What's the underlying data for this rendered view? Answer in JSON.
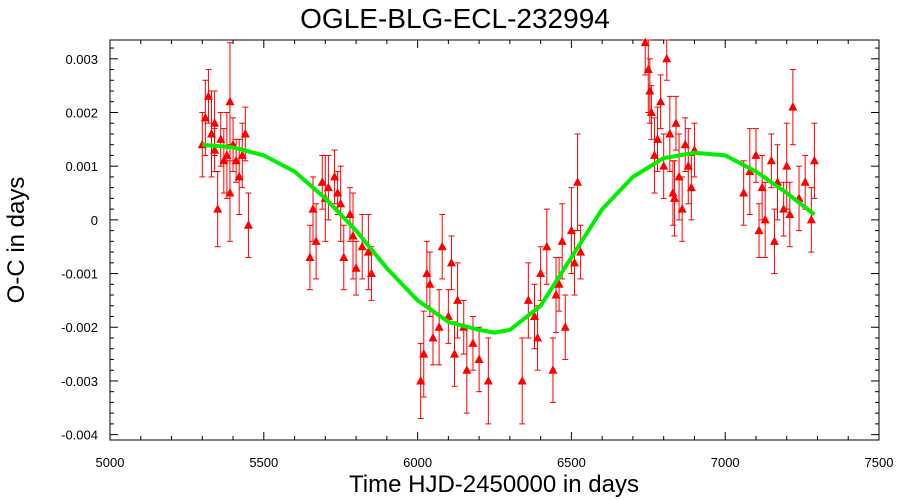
{
  "chart_data": {
    "type": "scatter",
    "title": "OGLE-BLG-ECL-232994",
    "xlabel": "Time HJD-2450000 in days",
    "ylabel": "O-C in days",
    "xlim": [
      5000,
      7500
    ],
    "ylim": [
      -0.0041,
      0.00335
    ],
    "x_ticks": [
      5000,
      5500,
      6000,
      6500,
      7000,
      7500
    ],
    "x_tick_labels": [
      "5000",
      "5500",
      "6000",
      "6500",
      "7000",
      "7500"
    ],
    "y_ticks": [
      0.003,
      0.002,
      0.001,
      0,
      -0.001,
      -0.002,
      -0.003,
      -0.004
    ],
    "y_tick_labels": [
      "0.003",
      "0.002",
      "0.001",
      "0",
      "-0.001",
      "-0.002",
      "-0.003",
      "-0.004"
    ],
    "grid": false,
    "legend": "none",
    "colors": {
      "points": "#ff0000",
      "fit": "#00ee00",
      "frame": "#000000"
    },
    "fit_curve": {
      "x": [
        5300,
        5400,
        5500,
        5600,
        5700,
        5800,
        5900,
        6000,
        6100,
        6200,
        6250,
        6300,
        6400,
        6500,
        6600,
        6700,
        6800,
        6900,
        7000,
        7100,
        7200,
        7290
      ],
      "y": [
        0.0014,
        0.00135,
        0.0012,
        0.0009,
        0.0004,
        -0.0002,
        -0.0009,
        -0.0015,
        -0.0019,
        -0.00205,
        -0.0021,
        -0.00205,
        -0.0016,
        -0.0007,
        0.0002,
        0.0008,
        0.00115,
        0.00125,
        0.0012,
        0.0009,
        0.0005,
        0.0001
      ]
    },
    "points": {
      "x": [
        5300,
        5310,
        5320,
        5330,
        5340,
        5350,
        5360,
        5370,
        5380,
        5390,
        5400,
        5410,
        5420,
        5430,
        5440,
        5450,
        5340,
        5390,
        5650,
        5670,
        5690,
        5700,
        5710,
        5730,
        5750,
        5760,
        5780,
        5790,
        5800,
        5820,
        5840,
        5850,
        5660,
        5740,
        6010,
        6020,
        6030,
        6050,
        6070,
        6080,
        6100,
        6120,
        6130,
        6150,
        6160,
        6180,
        6200,
        6230,
        6040,
        6110,
        6340,
        6360,
        6380,
        6400,
        6420,
        6440,
        6460,
        6470,
        6480,
        6500,
        6510,
        6520,
        6530,
        6390,
        6450,
        6740,
        6750,
        6760,
        6770,
        6780,
        6790,
        6800,
        6810,
        6820,
        6830,
        6840,
        6850,
        6860,
        6870,
        6880,
        6890,
        6900,
        6755,
        6835,
        7060,
        7080,
        7100,
        7120,
        7130,
        7150,
        7160,
        7170,
        7190,
        7200,
        7220,
        7240,
        7260,
        7280,
        7290,
        7110,
        7210
      ],
      "y": [
        0.0014,
        0.0019,
        0.0023,
        0.0016,
        0.0018,
        0.0002,
        0.0015,
        0.0011,
        0.0012,
        0.0022,
        0.0014,
        0.0011,
        0.0008,
        0.0012,
        0.0016,
        -0.0001,
        0.0013,
        0.0005,
        -0.0007,
        -0.0004,
        0.0007,
        0.0004,
        0.0006,
        0.0008,
        0.0003,
        -0.0007,
        0.0001,
        -0.0003,
        -0.0009,
        -0.0005,
        -0.0006,
        -0.001,
        0.0002,
        0.0005,
        -0.003,
        -0.0025,
        -0.001,
        -0.0022,
        -0.002,
        -0.0005,
        -0.0018,
        -0.0025,
        -0.0015,
        -0.002,
        -0.0028,
        -0.0023,
        -0.0026,
        -0.003,
        -0.0012,
        -0.0008,
        -0.003,
        -0.0015,
        -0.0018,
        -0.001,
        -0.0005,
        -0.0028,
        -0.0012,
        -0.0004,
        -0.002,
        -0.0002,
        -0.0008,
        0.0007,
        -0.0006,
        -0.0022,
        -0.0014,
        0.0033,
        0.0028,
        0.002,
        0.0012,
        0.0015,
        0.0022,
        0.001,
        0.003,
        0.0016,
        0.0005,
        0.0018,
        0.0008,
        0.0002,
        0.0014,
        0.001,
        0.0006,
        0.0013,
        0.0024,
        0.0004,
        0.0005,
        0.0009,
        0.0012,
        0.0006,
        0.0,
        0.0011,
        -0.0004,
        0.0007,
        0.0002,
        0.001,
        0.0021,
        0.0004,
        0.0007,
        0.0,
        0.0011,
        -0.0002,
        0.0001
      ],
      "yerr": [
        0.0006,
        0.0007,
        0.0005,
        0.0008,
        0.0006,
        0.0007,
        0.0005,
        0.0006,
        0.0008,
        0.0011,
        0.0005,
        0.0004,
        0.0007,
        0.0006,
        0.0005,
        0.0006,
        0.0004,
        0.0009,
        0.0006,
        0.0007,
        0.0005,
        0.0008,
        0.0006,
        0.0005,
        0.0007,
        0.0006,
        0.0005,
        0.0008,
        0.0005,
        0.0006,
        0.0007,
        0.0005,
        0.0006,
        0.0004,
        0.0007,
        0.0008,
        0.0006,
        0.0005,
        0.0007,
        0.0006,
        0.0005,
        0.0006,
        0.0007,
        0.0005,
        0.0008,
        0.0005,
        0.0006,
        0.0008,
        0.0006,
        0.0005,
        0.0008,
        0.0007,
        0.0006,
        0.0005,
        0.0007,
        0.0006,
        0.0005,
        0.0007,
        0.0006,
        0.0008,
        0.0006,
        0.0009,
        0.0005,
        0.0006,
        0.0007,
        0.0006,
        0.0008,
        0.0005,
        0.0007,
        0.0006,
        0.0005,
        0.0006,
        0.0004,
        0.0007,
        0.0006,
        0.0005,
        0.0008,
        0.0006,
        0.0005,
        0.0007,
        0.0006,
        0.0005,
        0.0006,
        0.0007,
        0.0006,
        0.0008,
        0.0005,
        0.0006,
        0.0007,
        0.0005,
        0.0006,
        0.0007,
        0.0005,
        0.0008,
        0.0007,
        0.0006,
        0.0005,
        0.0006,
        0.0007,
        0.0005,
        0.0006
      ]
    }
  }
}
